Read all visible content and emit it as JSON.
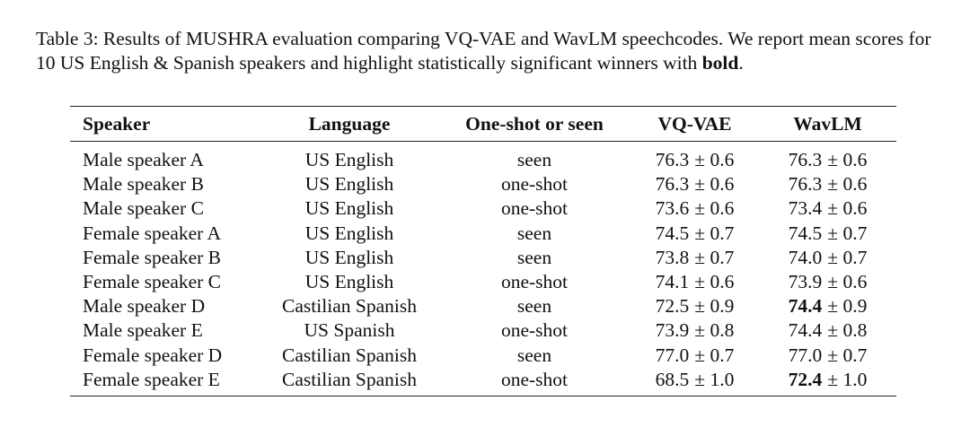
{
  "caption": {
    "parts": [
      {
        "text": "Table 3: Results of MUSHRA evaluation comparing VQ-VAE and WavLM speechcodes. We report mean scores for 10 US English & Spanish speakers and highlight statistically significant winners with "
      },
      {
        "text": "bold",
        "bold": true
      },
      {
        "text": "."
      }
    ]
  },
  "table": {
    "header": [
      "Speaker",
      "Language",
      "One-shot or seen",
      "VQ-VAE",
      "WavLM"
    ],
    "rows": [
      [
        "Male speaker A",
        "US English",
        "seen",
        {
          "mean": "76.3",
          "pm": "± 0.6"
        },
        {
          "mean": "76.3",
          "pm": "± 0.6"
        }
      ],
      [
        "Male speaker B",
        "US English",
        "one-shot",
        {
          "mean": "76.3",
          "pm": "± 0.6"
        },
        {
          "mean": "76.3",
          "pm": "± 0.6"
        }
      ],
      [
        "Male speaker C",
        "US English",
        "one-shot",
        {
          "mean": "73.6",
          "pm": "± 0.6"
        },
        {
          "mean": "73.4",
          "pm": "± 0.6"
        }
      ],
      [
        "Female speaker A",
        "US English",
        "seen",
        {
          "mean": "74.5",
          "pm": "± 0.7"
        },
        {
          "mean": "74.5",
          "pm": "± 0.7"
        }
      ],
      [
        "Female speaker B",
        "US English",
        "seen",
        {
          "mean": "73.8",
          "pm": "± 0.7"
        },
        {
          "mean": "74.0",
          "pm": "± 0.7"
        }
      ],
      [
        "Female speaker C",
        "US English",
        "one-shot",
        {
          "mean": "74.1",
          "pm": "± 0.6"
        },
        {
          "mean": "73.9",
          "pm": "± 0.6"
        }
      ],
      [
        "Male speaker D",
        "Castilian Spanish",
        "seen",
        {
          "mean": "72.5",
          "pm": "± 0.9"
        },
        {
          "mean": "74.4",
          "pm": "± 0.9",
          "bold": true
        }
      ],
      [
        "Male speaker E",
        "US Spanish",
        "one-shot",
        {
          "mean": "73.9",
          "pm": "± 0.8"
        },
        {
          "mean": "74.4",
          "pm": "± 0.8"
        }
      ],
      [
        "Female speaker D",
        "Castilian Spanish",
        "seen",
        {
          "mean": "77.0",
          "pm": "± 0.7"
        },
        {
          "mean": "77.0",
          "pm": "± 0.7"
        }
      ],
      [
        "Female speaker E",
        "Castilian Spanish",
        "one-shot",
        {
          "mean": "68.5",
          "pm": "± 1.0"
        },
        {
          "mean": "72.4",
          "pm": "± 1.0",
          "bold": true
        }
      ]
    ]
  }
}
